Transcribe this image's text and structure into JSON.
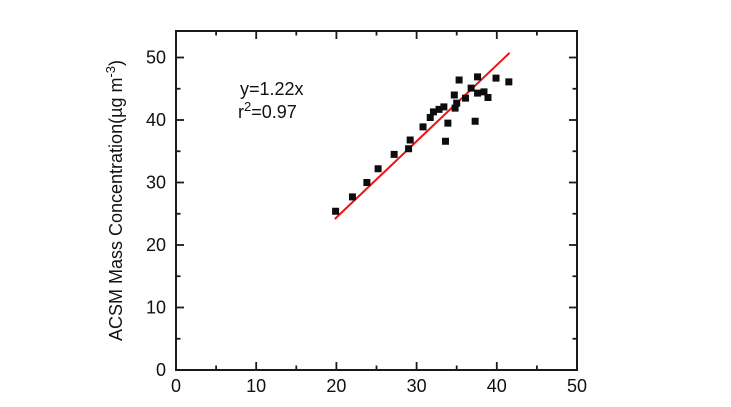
{
  "figure": {
    "background": "#ffffff",
    "annotation": {
      "equation": "y=1.22x",
      "r_label": "r",
      "r_exponent": "2",
      "r_value": "=0.97"
    },
    "y_axis_title": {
      "prefix": "ACSM Mass Concentration(µg m",
      "exponent": "-3",
      "suffix": ")"
    }
  },
  "chart_data": {
    "type": "scatter",
    "title": "",
    "xlabel": "",
    "ylabel": "ACSM Mass Concentration(µg m-3)",
    "xlim": [
      0,
      50
    ],
    "ylim": [
      0,
      54.24
    ],
    "grid": false,
    "x_major_ticks": [
      0,
      10,
      20,
      30,
      40,
      50
    ],
    "x_minor_ticks": [
      5,
      15,
      25,
      35,
      45
    ],
    "y_major_ticks": [
      0,
      10,
      20,
      30,
      40,
      50
    ],
    "y_minor_ticks": [
      5,
      15,
      25,
      35,
      45
    ],
    "x_tick_labels": [
      "0",
      "10",
      "20",
      "30",
      "40",
      "50"
    ],
    "y_tick_labels": [
      "0",
      "10",
      "20",
      "30",
      "40",
      "50"
    ],
    "axis_color": "#1a1a1a",
    "marker": {
      "shape": "square",
      "size": 7,
      "color": "#0d0d0d"
    },
    "points": [
      [
        19.9,
        25.4
      ],
      [
        22.0,
        27.7
      ],
      [
        23.8,
        30.0
      ],
      [
        25.2,
        32.2
      ],
      [
        27.2,
        34.5
      ],
      [
        29.0,
        35.4
      ],
      [
        29.2,
        36.8
      ],
      [
        30.8,
        38.9
      ],
      [
        31.7,
        40.4
      ],
      [
        32.1,
        41.3
      ],
      [
        32.8,
        41.7
      ],
      [
        33.4,
        42.1
      ],
      [
        33.6,
        36.6
      ],
      [
        33.9,
        39.5
      ],
      [
        34.7,
        44.0
      ],
      [
        34.8,
        41.9
      ],
      [
        35.0,
        42.7
      ],
      [
        35.3,
        46.4
      ],
      [
        36.1,
        43.5
      ],
      [
        36.8,
        45.1
      ],
      [
        37.3,
        39.8
      ],
      [
        37.6,
        44.3
      ],
      [
        37.6,
        46.9
      ],
      [
        38.4,
        44.5
      ],
      [
        38.9,
        43.6
      ],
      [
        39.9,
        46.7
      ],
      [
        41.5,
        46.1
      ]
    ],
    "fit_line": {
      "equation": "y=1.22x",
      "slope": 1.22,
      "intercept": 0,
      "r_squared": 0.97,
      "x_start": 19.8,
      "x_end": 41.6,
      "color": "#ee1111"
    }
  }
}
